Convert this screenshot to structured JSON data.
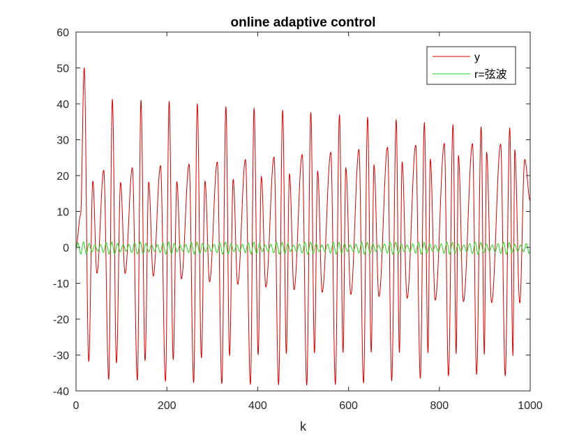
{
  "chart_data": {
    "type": "line",
    "title": "online adaptive control",
    "xlabel": "k",
    "ylabel": "",
    "xlim": [
      0,
      1000
    ],
    "ylim": [
      -40,
      60
    ],
    "xticks": [
      0,
      200,
      400,
      600,
      800,
      1000
    ],
    "yticks": [
      -40,
      -30,
      -20,
      -10,
      0,
      10,
      20,
      30,
      40,
      50,
      60
    ],
    "xtick_labels": [
      "0",
      "200",
      "400",
      "600",
      "800",
      "1000"
    ],
    "ytick_labels": [
      "-40",
      "-30",
      "-20",
      "-10",
      "0",
      "10",
      "20",
      "30",
      "40",
      "50",
      "60"
    ],
    "grid": false,
    "legend_position": "top-right",
    "series": [
      {
        "name": "y",
        "color": "#d40000",
        "description_values": {
          "cycle_length": 62,
          "peaks_big": [
            [
              18,
              50
            ],
            [
              80,
              41.3
            ],
            [
              143,
              41
            ],
            [
              205,
              40.7
            ],
            [
              267,
              40
            ],
            [
              330,
              39.2
            ],
            [
              392,
              38.8
            ],
            [
              455,
              38.2
            ],
            [
              517,
              37.6
            ],
            [
              580,
              37
            ],
            [
              642,
              36.3
            ],
            [
              705,
              35.6
            ],
            [
              767,
              34.8
            ],
            [
              830,
              34.2
            ],
            [
              892,
              33.6
            ],
            [
              955,
              33.3
            ]
          ],
          "peaks_small": [
            [
              37,
              18.5
            ],
            [
              98,
              18.1
            ],
            [
              160,
              18.2
            ],
            [
              222,
              18.3
            ],
            [
              284,
              18.5
            ],
            [
              346,
              19
            ],
            [
              408,
              19.8
            ],
            [
              470,
              20.5
            ],
            [
              532,
              21.3
            ],
            [
              594,
              22.2
            ],
            [
              656,
              23
            ],
            [
              718,
              23.8
            ],
            [
              780,
              24.6
            ],
            [
              842,
              25.6
            ],
            [
              904,
              26.5
            ],
            [
              966,
              27.2
            ]
          ],
          "peaks_mid": [
            [
              61,
              21.5
            ],
            [
              124,
              22.2
            ],
            [
              186,
              22.8
            ],
            [
              249,
              23.2
            ],
            [
              311,
              23.8
            ],
            [
              373,
              24.5
            ],
            [
              436,
              25.2
            ],
            [
              498,
              25.9
            ],
            [
              561,
              26.5
            ],
            [
              623,
              27.3
            ],
            [
              686,
              27.9
            ],
            [
              748,
              28.5
            ],
            [
              811,
              29
            ],
            [
              873,
              28.9
            ],
            [
              935,
              28.8
            ],
            [
              988,
              24.5
            ]
          ],
          "troughs_big": [
            [
              28,
              -31.8
            ],
            [
              72,
              -36.8
            ],
            [
              135,
              -37
            ],
            [
              197,
              -37.3
            ],
            [
              259,
              -37.7
            ],
            [
              321,
              -38
            ],
            [
              384,
              -38.2
            ],
            [
              446,
              -38.3
            ],
            [
              508,
              -38.4
            ],
            [
              571,
              -38.2
            ],
            [
              633,
              -37.8
            ],
            [
              695,
              -37.2
            ],
            [
              758,
              -36.5
            ],
            [
              820,
              -35.8
            ],
            [
              882,
              -35.4
            ],
            [
              945,
              -35.8
            ]
          ],
          "troughs_small": [
            [
              46,
              -7.2
            ],
            [
              108,
              -7.3
            ],
            [
              170,
              -8
            ],
            [
              232,
              -8.8
            ],
            [
              294,
              -9.6
            ],
            [
              356,
              -10.3
            ],
            [
              418,
              -11.1
            ],
            [
              480,
              -11.8
            ],
            [
              542,
              -12.5
            ],
            [
              605,
              -13.1
            ],
            [
              667,
              -13.7
            ],
            [
              729,
              -14.2
            ],
            [
              791,
              -14.7
            ],
            [
              853,
              -15.1
            ],
            [
              915,
              -15.4
            ],
            [
              977,
              -15.5
            ]
          ],
          "troughs_mid": [
            [
              89,
              -32.2
            ],
            [
              152,
              -31.6
            ],
            [
              214,
              -31.3
            ],
            [
              276,
              -30.8
            ],
            [
              338,
              -30.2
            ],
            [
              401,
              -29.9
            ],
            [
              463,
              -29.6
            ],
            [
              525,
              -29.4
            ],
            [
              588,
              -29.3
            ],
            [
              650,
              -29.2
            ],
            [
              712,
              -29.3
            ],
            [
              775,
              -29.4
            ],
            [
              837,
              -29.6
            ],
            [
              899,
              -29.8
            ],
            [
              962,
              -30.2
            ]
          ]
        }
      },
      {
        "name": "r=弦波",
        "color": "#1ed41e",
        "description_values": {
          "amplitude_range": [
            -1.9,
            1.5
          ],
          "period": 12.5
        }
      }
    ]
  }
}
